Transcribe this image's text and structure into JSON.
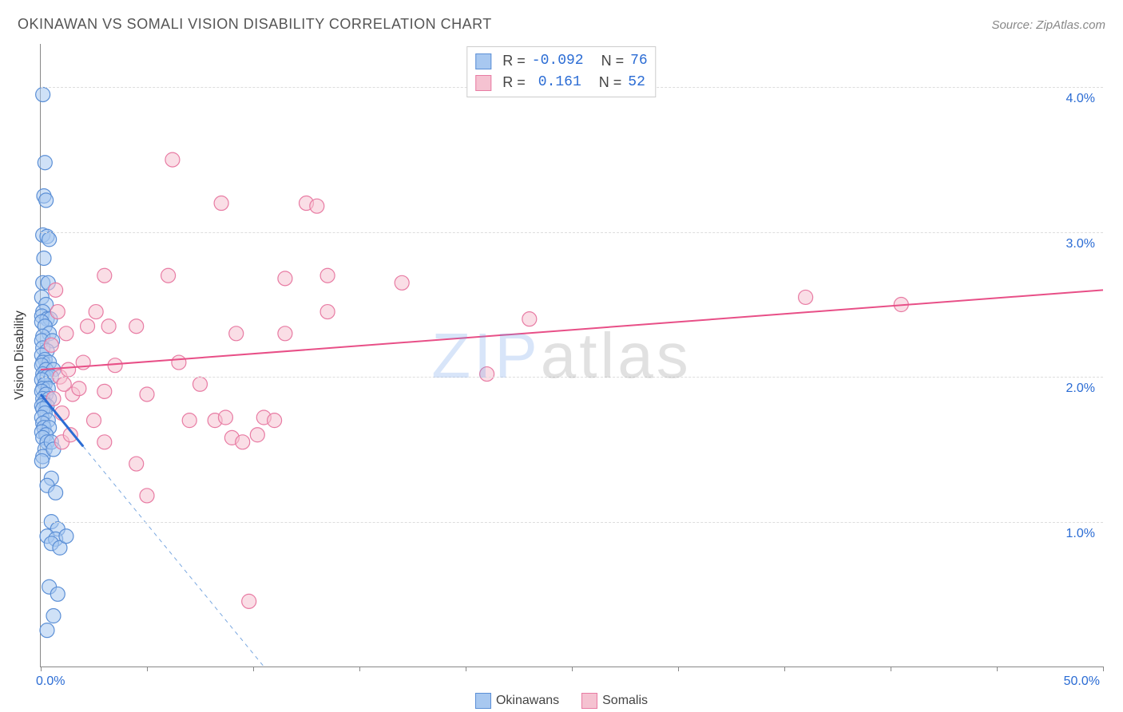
{
  "header": {
    "title": "OKINAWAN VS SOMALI VISION DISABILITY CORRELATION CHART",
    "source": "Source: ZipAtlas.com"
  },
  "watermark": {
    "part1": "ZIP",
    "part2": "atlas"
  },
  "chart": {
    "type": "scatter",
    "ylabel": "Vision Disability",
    "xlim": [
      0,
      50
    ],
    "ylim": [
      0,
      4.3
    ],
    "background_color": "#ffffff",
    "grid_color": "#dddddd",
    "axis_color": "#888888",
    "axis_label_color": "#2b6cd4",
    "x_ticks": [
      0,
      5,
      10,
      15,
      20,
      25,
      30,
      35,
      40,
      45,
      50
    ],
    "x_tick_labels": {
      "0": "0.0%",
      "50": "50.0%"
    },
    "y_ticks": [
      1.0,
      2.0,
      3.0,
      4.0
    ],
    "y_tick_labels": {
      "1.0": "1.0%",
      "2.0": "2.0%",
      "3.0": "3.0%",
      "4.0": "4.0%"
    },
    "marker_radius": 9,
    "marker_opacity": 0.55,
    "series": [
      {
        "name": "Okinawans",
        "color_fill": "#a8c8f0",
        "color_stroke": "#5b8fd6",
        "R": "-0.092",
        "N": "76",
        "trend": {
          "x1": 0,
          "y1": 1.88,
          "x2": 2.0,
          "y2": 1.52,
          "color": "#2b6cd4",
          "width": 3,
          "dash": ""
        },
        "trend_ext": {
          "x1": 2.0,
          "y1": 1.52,
          "x2": 10.5,
          "y2": 0.0,
          "color": "#7aa8e0",
          "width": 1,
          "dash": "5,5"
        },
        "points": [
          [
            0.1,
            3.95
          ],
          [
            0.2,
            3.48
          ],
          [
            0.15,
            3.25
          ],
          [
            0.25,
            3.22
          ],
          [
            0.1,
            2.98
          ],
          [
            0.3,
            2.97
          ],
          [
            0.4,
            2.95
          ],
          [
            0.15,
            2.82
          ],
          [
            0.1,
            2.65
          ],
          [
            0.35,
            2.65
          ],
          [
            0.05,
            2.55
          ],
          [
            0.25,
            2.5
          ],
          [
            0.1,
            2.45
          ],
          [
            0.05,
            2.42
          ],
          [
            0.3,
            2.4
          ],
          [
            0.45,
            2.4
          ],
          [
            0.05,
            2.38
          ],
          [
            0.2,
            2.35
          ],
          [
            0.4,
            2.3
          ],
          [
            0.1,
            2.28
          ],
          [
            0.05,
            2.25
          ],
          [
            0.55,
            2.25
          ],
          [
            0.1,
            2.2
          ],
          [
            0.3,
            2.18
          ],
          [
            0.05,
            2.15
          ],
          [
            0.2,
            2.12
          ],
          [
            0.1,
            2.1
          ],
          [
            0.4,
            2.1
          ],
          [
            0.05,
            2.08
          ],
          [
            0.25,
            2.05
          ],
          [
            0.6,
            2.05
          ],
          [
            0.1,
            2.02
          ],
          [
            0.15,
            2.0
          ],
          [
            0.3,
            2.0
          ],
          [
            0.5,
            2.0
          ],
          [
            0.05,
            1.98
          ],
          [
            0.2,
            1.95
          ],
          [
            0.1,
            1.92
          ],
          [
            0.35,
            1.92
          ],
          [
            0.05,
            1.9
          ],
          [
            0.25,
            1.88
          ],
          [
            0.1,
            1.85
          ],
          [
            0.4,
            1.85
          ],
          [
            0.15,
            1.82
          ],
          [
            0.05,
            1.8
          ],
          [
            0.3,
            1.8
          ],
          [
            0.1,
            1.78
          ],
          [
            0.2,
            1.75
          ],
          [
            0.05,
            1.72
          ],
          [
            0.35,
            1.7
          ],
          [
            0.1,
            1.68
          ],
          [
            0.15,
            1.65
          ],
          [
            0.4,
            1.65
          ],
          [
            0.05,
            1.62
          ],
          [
            0.25,
            1.6
          ],
          [
            0.1,
            1.58
          ],
          [
            0.3,
            1.55
          ],
          [
            0.2,
            1.5
          ],
          [
            0.1,
            1.45
          ],
          [
            0.05,
            1.42
          ],
          [
            0.5,
            1.55
          ],
          [
            0.6,
            1.5
          ],
          [
            0.5,
            1.3
          ],
          [
            0.3,
            1.25
          ],
          [
            0.7,
            1.2
          ],
          [
            0.5,
            1.0
          ],
          [
            0.8,
            0.95
          ],
          [
            0.3,
            0.9
          ],
          [
            0.7,
            0.88
          ],
          [
            0.5,
            0.85
          ],
          [
            0.9,
            0.82
          ],
          [
            1.2,
            0.9
          ],
          [
            0.4,
            0.55
          ],
          [
            0.8,
            0.5
          ],
          [
            0.6,
            0.35
          ],
          [
            0.3,
            0.25
          ]
        ]
      },
      {
        "name": "Somalis",
        "color_fill": "#f5c2d1",
        "color_stroke": "#e87ba3",
        "R": "0.161",
        "N": "52",
        "trend": {
          "x1": 0,
          "y1": 2.05,
          "x2": 50,
          "y2": 2.6,
          "color": "#e84f87",
          "width": 2,
          "dash": ""
        },
        "points": [
          [
            6.2,
            3.5
          ],
          [
            8.5,
            3.2
          ],
          [
            12.5,
            3.2
          ],
          [
            13.0,
            3.18
          ],
          [
            3.0,
            2.7
          ],
          [
            6.0,
            2.7
          ],
          [
            11.5,
            2.68
          ],
          [
            13.5,
            2.7
          ],
          [
            17.0,
            2.65
          ],
          [
            0.8,
            2.45
          ],
          [
            2.6,
            2.45
          ],
          [
            36.0,
            2.55
          ],
          [
            40.5,
            2.5
          ],
          [
            1.2,
            2.3
          ],
          [
            2.2,
            2.35
          ],
          [
            3.2,
            2.35
          ],
          [
            4.5,
            2.35
          ],
          [
            9.2,
            2.3
          ],
          [
            11.5,
            2.3
          ],
          [
            13.5,
            2.45
          ],
          [
            23.0,
            2.4
          ],
          [
            0.5,
            2.22
          ],
          [
            2.0,
            2.1
          ],
          [
            3.5,
            2.08
          ],
          [
            6.5,
            2.1
          ],
          [
            7.5,
            1.95
          ],
          [
            21.0,
            2.02
          ],
          [
            1.5,
            1.88
          ],
          [
            3.0,
            1.9
          ],
          [
            5.0,
            1.88
          ],
          [
            1.0,
            1.75
          ],
          [
            2.5,
            1.7
          ],
          [
            7.0,
            1.7
          ],
          [
            8.2,
            1.7
          ],
          [
            8.7,
            1.72
          ],
          [
            10.5,
            1.72
          ],
          [
            11.0,
            1.7
          ],
          [
            3.0,
            1.55
          ],
          [
            9.0,
            1.58
          ],
          [
            9.5,
            1.55
          ],
          [
            10.2,
            1.6
          ],
          [
            4.5,
            1.4
          ],
          [
            5.0,
            1.18
          ],
          [
            9.8,
            0.45
          ],
          [
            0.7,
            2.6
          ],
          [
            0.9,
            2.0
          ],
          [
            1.3,
            2.05
          ],
          [
            1.1,
            1.95
          ],
          [
            0.6,
            1.85
          ],
          [
            1.0,
            1.55
          ],
          [
            1.4,
            1.6
          ],
          [
            1.8,
            1.92
          ]
        ]
      }
    ],
    "legend_bottom": [
      {
        "label": "Okinawans",
        "fill": "#a8c8f0",
        "stroke": "#5b8fd6"
      },
      {
        "label": "Somalis",
        "fill": "#f5c2d1",
        "stroke": "#e87ba3"
      }
    ]
  }
}
